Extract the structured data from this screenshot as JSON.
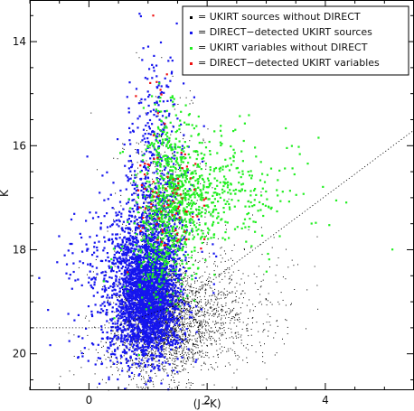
{
  "chart_data": {
    "type": "scatter",
    "xlabel": "(J−K)",
    "ylabel": "K",
    "xlim": [
      -1.0,
      5.5
    ],
    "ylim": [
      20.7,
      13.2
    ],
    "y_inverted": true,
    "grid": false,
    "legend_position": "top-right",
    "x_ticks": [
      0,
      2,
      4
    ],
    "x_tick_labels": [
      "0",
      "2",
      "4"
    ],
    "y_ticks": [
      14,
      16,
      18,
      20
    ],
    "y_tick_labels": [
      "14",
      "16",
      "18",
      "20"
    ],
    "colors": {
      "black": "#000000",
      "blue": "#1515ee",
      "green": "#22ee22",
      "red": "#ee1111"
    },
    "series": [
      {
        "name": "= UKIRT sources without DIRECT",
        "color": "#000000",
        "marker_size": 1,
        "clusters": [
          {
            "cx": 1.15,
            "cy": 19.1,
            "sx": 0.3,
            "sy": 0.45,
            "n": 1200
          },
          {
            "cx": 1.6,
            "cy": 19.4,
            "sx": 0.55,
            "sy": 0.5,
            "n": 1100
          },
          {
            "cx": 1.2,
            "cy": 18.0,
            "sx": 0.35,
            "sy": 0.9,
            "n": 500
          },
          {
            "cx": 1.0,
            "cy": 20.0,
            "sx": 0.5,
            "sy": 0.35,
            "n": 400
          },
          {
            "cx": 2.3,
            "cy": 19.0,
            "sx": 0.6,
            "sy": 0.6,
            "n": 300
          },
          {
            "cx": 1.3,
            "cy": 16.7,
            "sx": 0.35,
            "sy": 0.9,
            "n": 200
          }
        ]
      },
      {
        "name": "= DIRECT−detected UKIRT sources",
        "color": "#1515ee",
        "marker_size": 2.2,
        "clusters": [
          {
            "cx": 1.0,
            "cy": 18.9,
            "sx": 0.25,
            "sy": 0.55,
            "n": 2000
          },
          {
            "cx": 1.0,
            "cy": 18.2,
            "sx": 0.35,
            "sy": 0.9,
            "n": 800
          },
          {
            "cx": 1.1,
            "cy": 16.6,
            "sx": 0.25,
            "sy": 1.0,
            "n": 300
          },
          {
            "cx": 1.2,
            "cy": 15.0,
            "sx": 0.18,
            "sy": 0.6,
            "n": 60
          },
          {
            "cx": 0.3,
            "cy": 18.5,
            "sx": 0.35,
            "sy": 0.7,
            "n": 200
          },
          {
            "cx": 0.8,
            "cy": 19.9,
            "sx": 0.4,
            "sy": 0.3,
            "n": 150
          }
        ]
      },
      {
        "name": "= UKIRT variables without DIRECT",
        "color": "#22ee22",
        "marker_size": 2.2,
        "clusters": [
          {
            "cx": 1.5,
            "cy": 17.0,
            "sx": 0.3,
            "sy": 0.55,
            "n": 500
          },
          {
            "cx": 2.2,
            "cy": 16.9,
            "sx": 0.45,
            "sy": 0.5,
            "n": 250
          },
          {
            "cx": 1.3,
            "cy": 16.0,
            "sx": 0.2,
            "sy": 0.5,
            "n": 120
          },
          {
            "cx": 3.2,
            "cy": 16.8,
            "sx": 0.6,
            "sy": 0.7,
            "n": 50
          },
          {
            "cx": 1.2,
            "cy": 18.1,
            "sx": 0.3,
            "sy": 0.5,
            "n": 200
          }
        ]
      },
      {
        "name": "= DIRECT−detected UKIRT variables",
        "color": "#ee1111",
        "marker_size": 2.2,
        "clusters": [
          {
            "cx": 1.3,
            "cy": 17.0,
            "sx": 0.3,
            "sy": 0.45,
            "n": 55
          },
          {
            "cx": 1.2,
            "cy": 15.2,
            "sx": 0.2,
            "sy": 0.6,
            "n": 12
          },
          {
            "cx": 1.7,
            "cy": 17.3,
            "sx": 0.35,
            "sy": 0.4,
            "n": 20
          }
        ]
      }
    ],
    "reference_line": {
      "style": "dotted",
      "points": [
        [
          -1.0,
          19.5
        ],
        [
          0.4,
          19.5
        ],
        [
          1.6,
          19.0
        ],
        [
          5.5,
          15.7
        ]
      ]
    }
  }
}
